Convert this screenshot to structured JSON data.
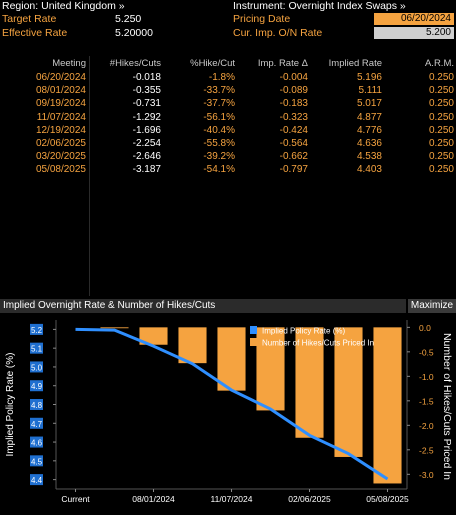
{
  "header": {
    "region_label": "Region: United Kingdom »",
    "target_rate_label": "Target Rate",
    "target_rate_value": "5.250",
    "effective_rate_label": "Effective Rate",
    "effective_rate_value": "5.20000",
    "instrument_label": "Instrument: Overnight Index Swaps »",
    "pricing_date_label": "Pricing Date",
    "pricing_date_value": "06/20/2024",
    "cur_imp_label": "Cur. Imp. O/N Rate",
    "cur_imp_value": "5.200"
  },
  "table": {
    "columns": [
      "Meeting",
      "#Hikes/Cuts",
      "%Hike/Cut",
      "Imp. Rate Δ",
      "Implied Rate",
      "A.R.M."
    ],
    "rows": [
      [
        "06/20/2024",
        "-0.018",
        "-1.8%",
        "-0.004",
        "5.196",
        "0.250"
      ],
      [
        "08/01/2024",
        "-0.355",
        "-33.7%",
        "-0.089",
        "5.111",
        "0.250"
      ],
      [
        "09/19/2024",
        "-0.731",
        "-37.7%",
        "-0.183",
        "5.017",
        "0.250"
      ],
      [
        "11/07/2024",
        "-1.292",
        "-56.1%",
        "-0.323",
        "4.877",
        "0.250"
      ],
      [
        "12/19/2024",
        "-1.696",
        "-40.4%",
        "-0.424",
        "4.776",
        "0.250"
      ],
      [
        "02/06/2025",
        "-2.254",
        "-55.8%",
        "-0.564",
        "4.636",
        "0.250"
      ],
      [
        "03/20/2025",
        "-2.646",
        "-39.2%",
        "-0.662",
        "4.538",
        "0.250"
      ],
      [
        "05/08/2025",
        "-3.187",
        "-54.1%",
        "-0.797",
        "4.403",
        "0.250"
      ]
    ]
  },
  "chart_panel": {
    "title": "Implied Overnight Rate & Number of Hikes/Cuts",
    "maximize_label": "Maximize"
  },
  "chart_data": {
    "type": "bar",
    "title": "Implied Overnight Rate & Number of Hikes/Cuts",
    "categories": [
      "Current",
      "06/20/2024",
      "08/01/2024",
      "09/19/2024",
      "11/07/2024",
      "12/19/2024",
      "02/06/2025",
      "03/20/2025",
      "05/08/2025"
    ],
    "x_tick_labels": [
      "Current",
      "08/01/2024",
      "11/07/2024",
      "02/06/2025",
      "05/08/2025"
    ],
    "series": [
      {
        "name": "Implied Policy Rate (%)",
        "kind": "line",
        "axis": "left",
        "color": "#2f8fff",
        "values": [
          5.2,
          5.196,
          5.111,
          5.017,
          4.877,
          4.776,
          4.636,
          4.538,
          4.403
        ]
      },
      {
        "name": "Number of Hikes/Cuts Priced In",
        "kind": "bar",
        "axis": "right",
        "color": "#f5a340",
        "values": [
          0,
          -0.018,
          -0.355,
          -0.731,
          -1.292,
          -1.696,
          -2.254,
          -2.646,
          -3.187
        ]
      }
    ],
    "ylabel": "Implied Policy Rate (%)",
    "ylabel_right": "Number of Hikes/Cuts Priced In",
    "ylim": [
      4.35,
      5.25
    ],
    "ylim_right": [
      -3.3,
      0.15
    ],
    "yticks": [
      "5.2",
      "5.1",
      "5.0",
      "4.9",
      "4.8",
      "4.7",
      "4.6",
      "4.5",
      "4.4"
    ],
    "yticks_right": [
      "0.0",
      "-0.5",
      "-1.0",
      "-1.5",
      "-2.0",
      "-2.5",
      "-3.0"
    ],
    "legend_position": "top-right",
    "grid": false
  },
  "colors": {
    "accent": "#f5a340",
    "line": "#2f8fff",
    "panel": "#2b2b2b"
  }
}
